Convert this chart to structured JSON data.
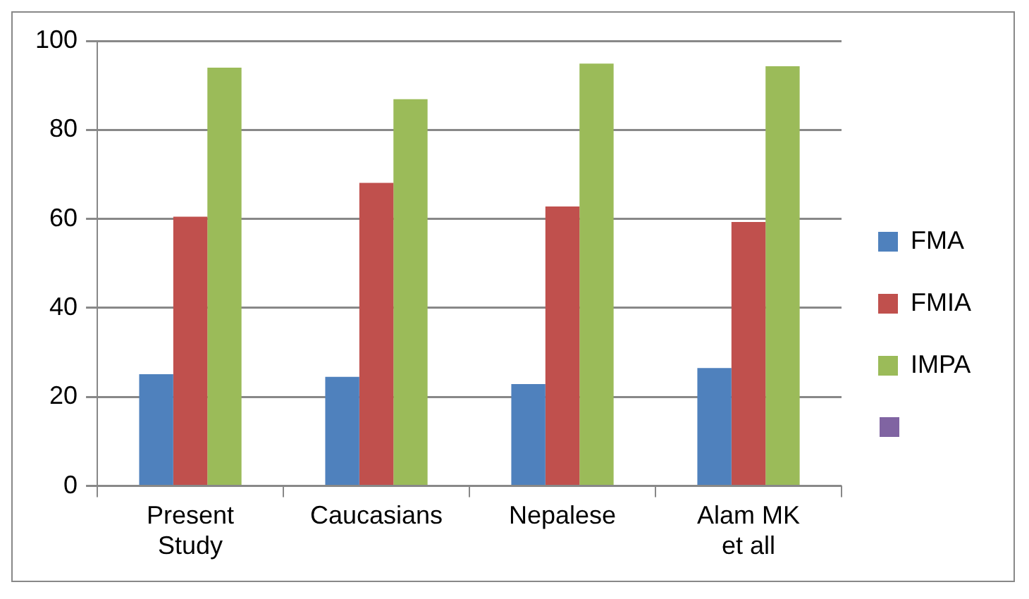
{
  "chart_data": {
    "type": "bar",
    "categories": [
      "Present Study",
      "Caucasians",
      "Nepalese",
      "Alam MK et all"
    ],
    "series": [
      {
        "name": "FMA",
        "color": "#4f81bd",
        "values": [
          25.1,
          24.5,
          22.9,
          26.5
        ]
      },
      {
        "name": "FMIA",
        "color": "#c0504d",
        "values": [
          60.5,
          68.1,
          62.8,
          59.3
        ]
      },
      {
        "name": "IMPA",
        "color": "#9bbb59",
        "values": [
          94.0,
          86.9,
          94.9,
          94.3
        ]
      }
    ],
    "ylim": [
      0,
      100
    ],
    "yticks": [
      0,
      20,
      40,
      60,
      80,
      100
    ],
    "grid": "y",
    "legend": "right"
  }
}
